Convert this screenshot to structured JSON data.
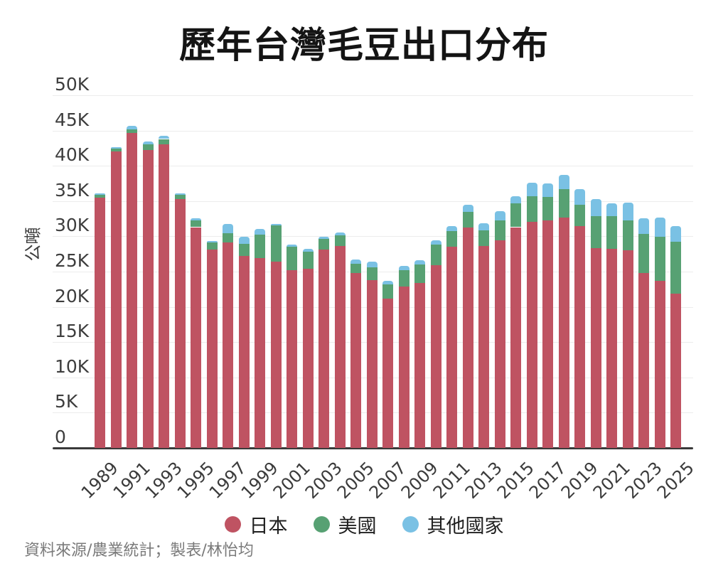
{
  "title": "歷年台灣毛豆出口分布",
  "y_axis": {
    "label": "公噸"
  },
  "legend": [
    {
      "key": "japan",
      "label": "日本",
      "color": "#bf5362"
    },
    {
      "key": "usa",
      "label": "美國",
      "color": "#57a173"
    },
    {
      "key": "others",
      "label": "其他國家",
      "color": "#7ac1e4"
    }
  ],
  "footer": "資料來源/農業統計；製表/林怡均",
  "chart_data": {
    "type": "bar",
    "stacked": true,
    "title": "歷年台灣毛豆出口分布",
    "ylabel": "公噸",
    "unit": "thousand metric tons (K)",
    "ylim": [
      0,
      50
    ],
    "grid": true,
    "legend_position": "bottom",
    "y_ticks_k": [
      0,
      5,
      10,
      15,
      20,
      25,
      30,
      35,
      40,
      45,
      50
    ],
    "y_tick_labels": [
      "0",
      "5K",
      "10K",
      "15K",
      "20K",
      "25K",
      "30K",
      "35K",
      "40K",
      "45K",
      "50K"
    ],
    "categories": [
      1989,
      1990,
      1991,
      1992,
      1993,
      1994,
      1995,
      1996,
      1997,
      1998,
      1999,
      2000,
      2001,
      2002,
      2003,
      2004,
      2005,
      2006,
      2007,
      2008,
      2009,
      2010,
      2011,
      2012,
      2013,
      2014,
      2015,
      2016,
      2017,
      2018,
      2019,
      2020,
      2021,
      2022,
      2023,
      2024,
      2025
    ],
    "x_tick_labels": [
      "1989",
      "1991",
      "1993",
      "1995",
      "1997",
      "1999",
      "2001",
      "2003",
      "2005",
      "2007",
      "2009",
      "2011",
      "2013",
      "2015",
      "2017",
      "2019",
      "2021",
      "2023",
      "2025"
    ],
    "series": [
      {
        "name": "日本",
        "key": "japan",
        "color": "#bf5362",
        "values": [
          35.5,
          42.0,
          44.7,
          42.2,
          43.0,
          35.3,
          31.3,
          28.1,
          29.1,
          27.2,
          26.9,
          26.4,
          25.2,
          25.4,
          28.1,
          28.6,
          24.8,
          23.8,
          21.2,
          22.9,
          23.4,
          25.9,
          28.5,
          31.2,
          28.6,
          29.4,
          31.3,
          32.1,
          32.3,
          32.7,
          31.5,
          28.3,
          28.2,
          28.0,
          24.8,
          23.7,
          21.9
        ]
      },
      {
        "name": "美國",
        "key": "usa",
        "color": "#57a173",
        "values": [
          0.35,
          0.45,
          0.45,
          0.8,
          0.8,
          0.55,
          1.0,
          1.0,
          1.35,
          1.7,
          3.35,
          5.2,
          3.35,
          2.4,
          1.5,
          1.5,
          1.3,
          1.85,
          2.0,
          2.35,
          2.6,
          2.9,
          2.25,
          2.3,
          2.25,
          2.9,
          3.35,
          3.6,
          3.3,
          3.95,
          3.0,
          4.6,
          4.7,
          4.3,
          5.55,
          6.2,
          7.3
        ]
      },
      {
        "name": "其他國家",
        "key": "others",
        "color": "#7ac1e4",
        "values": [
          0.2,
          0.2,
          0.55,
          0.4,
          0.45,
          0.25,
          0.3,
          0.25,
          1.35,
          1.0,
          0.75,
          0.2,
          0.25,
          0.4,
          0.35,
          0.4,
          0.6,
          0.8,
          0.5,
          0.55,
          0.6,
          0.6,
          0.75,
          1.0,
          1.0,
          1.3,
          1.0,
          1.9,
          1.85,
          2.1,
          2.2,
          2.35,
          1.8,
          2.5,
          2.25,
          2.8,
          2.3
        ]
      }
    ]
  }
}
